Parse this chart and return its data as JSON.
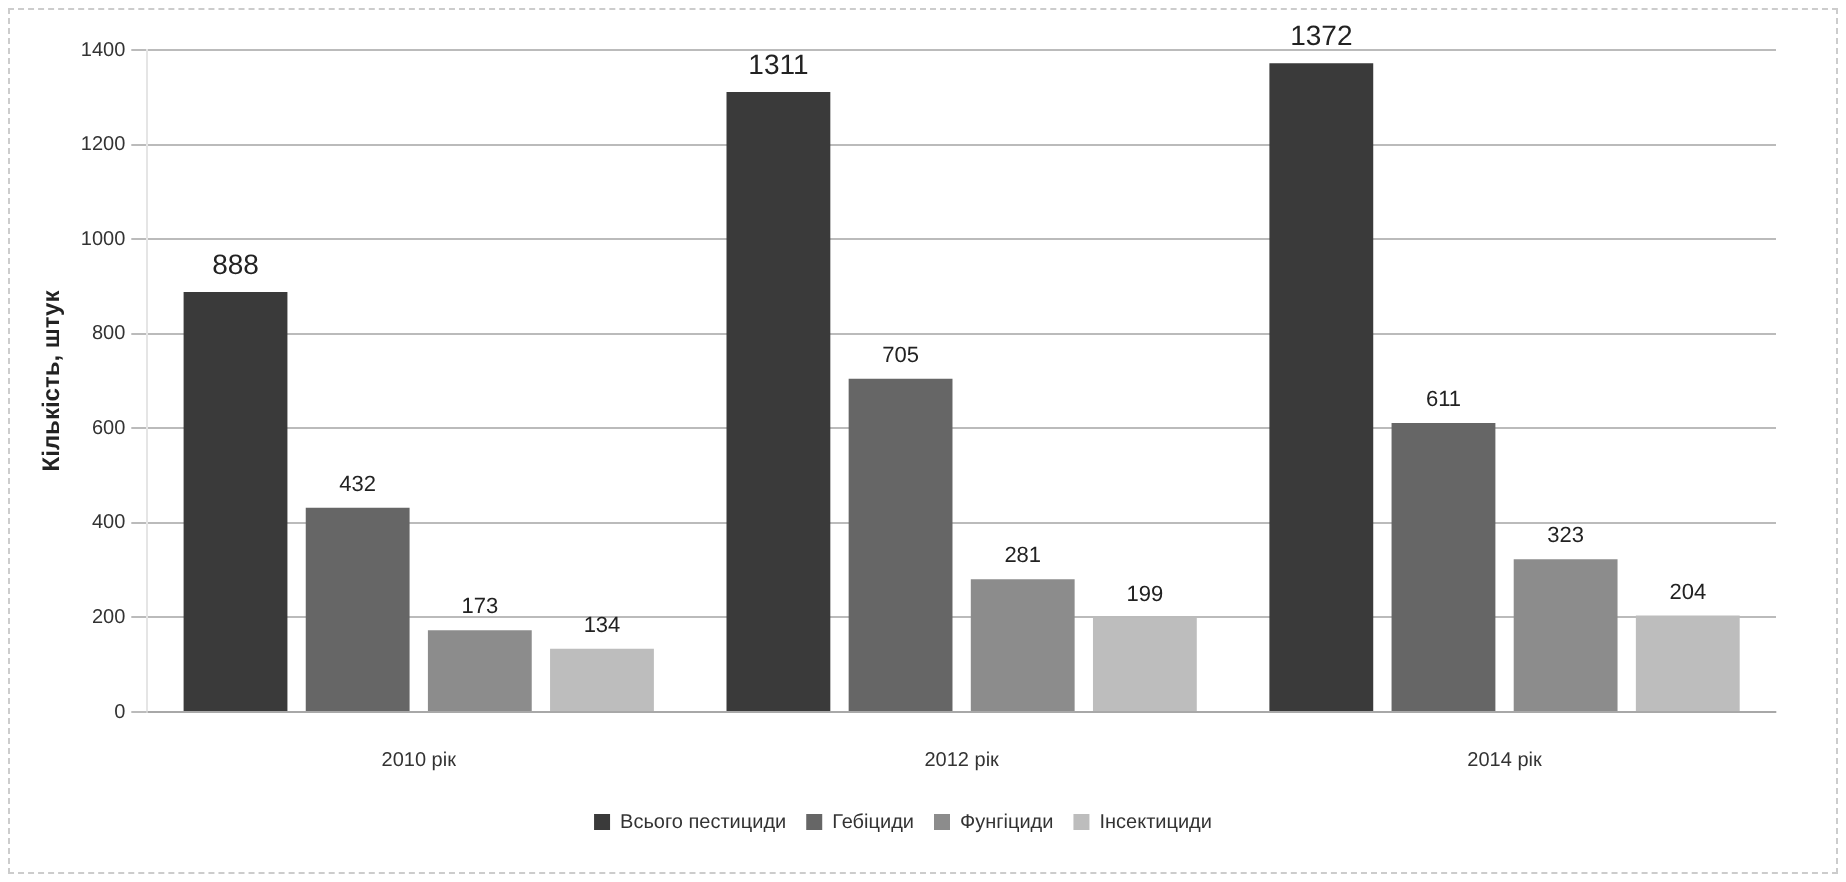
{
  "chart_data": {
    "type": "bar",
    "ylabel": "Кількість, штук",
    "categories": [
      "2010 рік",
      "2012 рік",
      "2014 рік"
    ],
    "series": [
      {
        "name": "Всього пестициди",
        "color": "#3a3a3a",
        "values": [
          888,
          1311,
          1372
        ]
      },
      {
        "name": "Гебіциди",
        "color": "#666666",
        "values": [
          432,
          705,
          611
        ]
      },
      {
        "name": "Фунгіциди",
        "color": "#8c8c8c",
        "values": [
          173,
          281,
          323
        ]
      },
      {
        "name": "Інсектициди",
        "color": "#bdbdbd",
        "values": [
          134,
          199,
          204
        ]
      }
    ],
    "ylim": [
      0,
      1400
    ],
    "yticks": [
      0,
      200,
      400,
      600,
      800,
      1000,
      1200,
      1400
    ],
    "grid": "y",
    "legend": "bottom",
    "data_labels": true
  }
}
